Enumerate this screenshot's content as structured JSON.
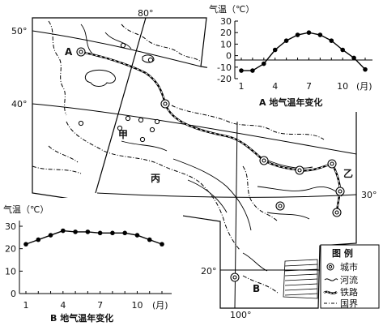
{
  "map": {
    "lat_labels": [
      "50°",
      "40°",
      "30°",
      "20°"
    ],
    "lon_labels": [
      "80°",
      "100°"
    ],
    "point_labels": {
      "A": "A",
      "B": "B",
      "jia": "甲",
      "yi": "乙",
      "bing": "丙"
    }
  },
  "legend": {
    "title": "图  例",
    "items": [
      {
        "icon": "city-icon",
        "label": "城市"
      },
      {
        "icon": "river-icon",
        "label": "河流"
      },
      {
        "icon": "railway-icon",
        "label": "铁路"
      },
      {
        "icon": "border-icon",
        "label": "国界"
      }
    ]
  },
  "chart_data": [
    {
      "type": "line",
      "title": "气温（℃）",
      "caption": "A 地气温年变化",
      "x": [
        1,
        2,
        3,
        4,
        5,
        6,
        7,
        8,
        9,
        10,
        11,
        12
      ],
      "xticks": [
        "1",
        "4",
        "7",
        "10"
      ],
      "xunit": "(月)",
      "y": [
        -13,
        -13,
        -7,
        5,
        13,
        18,
        20,
        18,
        13,
        5,
        -2,
        -12
      ],
      "yticks": [
        "30",
        "20",
        "10",
        "0",
        "-10",
        "-20"
      ],
      "ylim": [
        -20,
        30
      ]
    },
    {
      "type": "line",
      "title": "气温（℃）",
      "caption": "B 地气温年变化",
      "x": [
        1,
        2,
        3,
        4,
        5,
        6,
        7,
        8,
        9,
        10,
        11,
        12
      ],
      "xticks": [
        "1",
        "4",
        "7",
        "10"
      ],
      "xunit": "(月)",
      "y": [
        22,
        24,
        26,
        28,
        27.5,
        27.5,
        27,
        27,
        27,
        26,
        24,
        22
      ],
      "yticks": [
        "30",
        "20",
        "10",
        "0"
      ],
      "ylim": [
        0,
        30
      ]
    }
  ]
}
